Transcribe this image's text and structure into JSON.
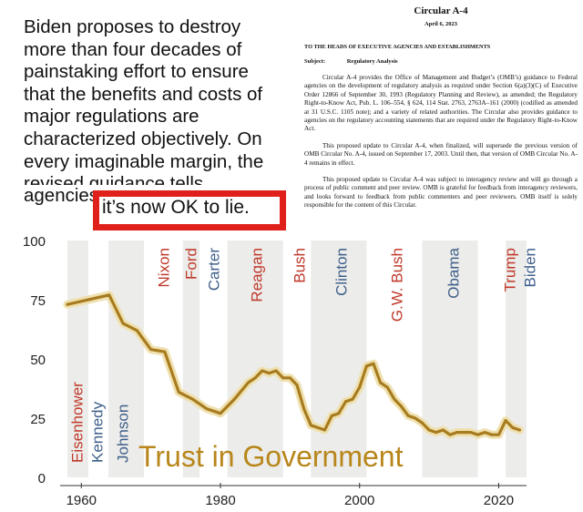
{
  "headline": {
    "lines": [
      "Biden proposes to destroy",
      "more than four decades of",
      "painstaking effort to ensure",
      "that the benefits and costs of",
      "major regulations are",
      "characterized objectively. On",
      "every imaginable margin, the",
      "revised guidance tells",
      "agencies"
    ],
    "highlight": "it’s now OK to lie.",
    "highlight_color": "#e0201b"
  },
  "document": {
    "title": "Circular A-4",
    "date": "April 6, 2023",
    "to": "TO THE HEADS OF EXECUTIVE AGENCIES AND ESTABLISHMENTS",
    "subject_label": "Subject:",
    "subject": "Regulatory Analysis",
    "paragraphs": [
      "Circular A-4 provides the Office of Management and Budget’s (OMB’s) guidance to Federal agencies on the development of regulatory analysis as required under Section 6(a)(3)(C) of Executive Order 12866 of September 30, 1993 (Regulatory Planning and Review), as amended; the Regulatory Right-to-Know Act, Pub. L. 106–554, § 624, 114 Stat. 2763, 2763A–161 (2000) (codified as amended at 31 U.S.C. 1105 note); and a variety of related authorities. The Circular also provides guidance to agencies on the regulatory accounting statements that are required under the Regulatory Right-to-Know Act.",
      "This proposed update to Circular A-4, when finalized, will supersede the previous version of OMB Circular No. A-4, issued on September 17, 2003. Until then, that version of OMB Circular No. A-4 remains in effect.",
      "This proposed update to Circular A-4 was subject to interagency review and will go through a process of public comment and peer review. OMB is grateful for feedback from interagency reviewers, and looks forward to feedback from public commenters and peer reviewers. OMB itself is solely responsible for the content of this Circular."
    ]
  },
  "chart_data": {
    "type": "line",
    "title": "Trust in Government",
    "title_color": "#b8861a",
    "xlim": [
      1958,
      2024
    ],
    "ylim": [
      0,
      100
    ],
    "x_ticks": [
      1960,
      1980,
      2000,
      2020
    ],
    "y_ticks": [
      0,
      25,
      50,
      75,
      100
    ],
    "colors": {
      "line": "#a87c1e",
      "band": "#efe0b0",
      "shade": "#ececea",
      "republican": "#c0392b",
      "democrat": "#3e5f8a"
    },
    "presidents": [
      {
        "name": "Eisenhower",
        "start": 1958,
        "end": 1961,
        "party": "R"
      },
      {
        "name": "Kennedy",
        "start": 1961,
        "end": 1963.9,
        "party": "D"
      },
      {
        "name": "Johnson",
        "start": 1963.9,
        "end": 1969,
        "party": "D"
      },
      {
        "name": "Nixon",
        "start": 1969,
        "end": 1974.6,
        "party": "R"
      },
      {
        "name": "Ford",
        "start": 1974.6,
        "end": 1977,
        "party": "R"
      },
      {
        "name": "Carter",
        "start": 1977,
        "end": 1981,
        "party": "D"
      },
      {
        "name": "Reagan",
        "start": 1981,
        "end": 1989,
        "party": "R"
      },
      {
        "name": "Bush",
        "start": 1989,
        "end": 1993,
        "party": "R"
      },
      {
        "name": "Clinton",
        "start": 1993,
        "end": 2001,
        "party": "D"
      },
      {
        "name": "G.W. Bush",
        "start": 2001,
        "end": 2009,
        "party": "R"
      },
      {
        "name": "Obama",
        "start": 2009,
        "end": 2017,
        "party": "D"
      },
      {
        "name": "Trump",
        "start": 2017,
        "end": 2021,
        "party": "R"
      },
      {
        "name": "Biden",
        "start": 2021,
        "end": 2024,
        "party": "D"
      }
    ],
    "series": [
      {
        "x": [
          1958,
          1964,
          1966,
          1968,
          1970,
          1972,
          1974,
          1976,
          1978,
          1980,
          1982,
          1984,
          1985,
          1986,
          1987,
          1988,
          1989,
          1990,
          1991,
          1992,
          1993,
          1994,
          1995,
          1996,
          1997,
          1998,
          1999,
          2000,
          2001,
          2002,
          2003,
          2004,
          2005,
          2006,
          2007,
          2008,
          2009,
          2010,
          2011,
          2012,
          2013,
          2014,
          2015,
          2016,
          2017,
          2018,
          2019,
          2020,
          2021,
          2022,
          2023
        ],
        "y": [
          73,
          77,
          65,
          62,
          54,
          53,
          36,
          33,
          29,
          27,
          33,
          40,
          42,
          45,
          44,
          45,
          42,
          42,
          39,
          29,
          22,
          21,
          20,
          26,
          27,
          32,
          33,
          38,
          47,
          48,
          40,
          38,
          33,
          30,
          26,
          25,
          23,
          20,
          19,
          20,
          18,
          19,
          19,
          19,
          18,
          19,
          18,
          18,
          24,
          21,
          20
        ]
      }
    ]
  }
}
